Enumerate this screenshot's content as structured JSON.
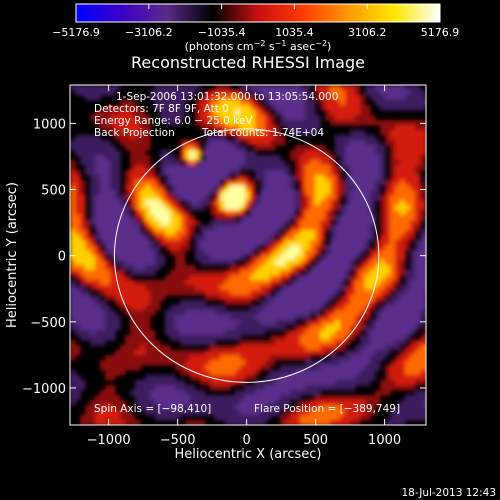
{
  "chart_data": {
    "type": "heatmap",
    "title": "Reconstructed RHESSI Image",
    "xlabel": "Heliocentric X (arcsec)",
    "ylabel": "Heliocentric Y (arcsec)",
    "xlim": [
      -1280,
      1300
    ],
    "ylim": [
      -1280,
      1290
    ],
    "xticks": [
      -1000,
      -500,
      0,
      500,
      1000
    ],
    "yticks": [
      -1000,
      -500,
      0,
      500,
      1000
    ],
    "xtick_labels": [
      "−1000",
      "−500",
      "0",
      "500",
      "1000"
    ],
    "ytick_labels": [
      "−1000",
      "−500",
      "0",
      "500",
      "1000"
    ],
    "colorbar": {
      "min": -5176.9,
      "max": 5176.9,
      "tick_labels": [
        "−5176.9",
        "−3106.2",
        "−1035.4",
        "1035.4",
        "3106.2",
        "5176.9"
      ],
      "unit_parts": [
        "(photons cm",
        "−2",
        " s",
        "−1",
        " asec",
        "−2",
        ")"
      ],
      "colors": [
        "#0000ff",
        "#3a00c8",
        "#5a2a86",
        "#000000",
        "#c81010",
        "#ff3c00",
        "#ff9a00",
        "#ffe800",
        "#ffffff"
      ]
    },
    "annotations": {
      "time": "1-Sep-2006 13:01:32.000 to 13:05:54.000",
      "detectors": "Detectors: 7F 8F 9F, Att 0",
      "energy": "Energy Range: 6.0 − 25.0 keV",
      "method": "Back Projection",
      "counts": "Total counts: 1.74E+04",
      "spin_axis": "Spin Axis = [−98,410]",
      "flare_position": "Flare Position = [−389,749]"
    },
    "solar_limb": {
      "center": [
        0,
        0
      ],
      "radius_arcsec": 958
    },
    "sources": [
      {
        "x": -90,
        "y": 450,
        "value": 5176.9
      },
      {
        "x": -390,
        "y": 750,
        "value": 4200
      }
    ],
    "grid": false
  },
  "timestamp": "18-Jul-2013 12:43"
}
